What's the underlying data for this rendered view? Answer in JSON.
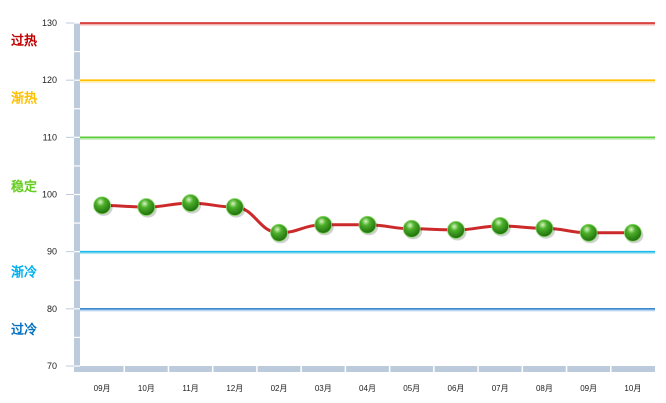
{
  "chart_data": {
    "type": "line",
    "categories": [
      "09月",
      "10月",
      "11月",
      "12月",
      "02月",
      "03月",
      "04月",
      "05月",
      "06月",
      "07月",
      "08月",
      "09月",
      "10月"
    ],
    "series": [
      {
        "values": [
          98.1,
          97.8,
          98.5,
          97.8,
          93.3,
          94.7,
          94.7,
          94.0,
          93.8,
          94.5,
          94.1,
          93.3,
          93.3
        ],
        "color": "#cc2a2a",
        "marker_color": "#3a9a1e"
      }
    ],
    "ylim": [
      70,
      130
    ],
    "yticks": [
      70,
      80,
      90,
      100,
      110,
      120,
      130
    ],
    "reference_lines": [
      {
        "value": 130,
        "color": "#d42020"
      },
      {
        "value": 120,
        "color": "#ffc000"
      },
      {
        "value": 110,
        "color": "#5ccc3a"
      },
      {
        "value": 90,
        "color": "#1cb8e8"
      },
      {
        "value": 80,
        "color": "#3a8ad0"
      }
    ],
    "zones": [
      {
        "label": "过热",
        "value": 127,
        "color": "#c00000"
      },
      {
        "label": "渐热",
        "value": 117,
        "color": "#ffc000"
      },
      {
        "label": "稳定",
        "value": 101.5,
        "color": "#66cc22"
      },
      {
        "label": "渐冷",
        "value": 86.5,
        "color": "#00b0f0"
      },
      {
        "label": "过冷",
        "value": 76.5,
        "color": "#0070c0"
      }
    ],
    "grid": false,
    "legend": "none"
  }
}
